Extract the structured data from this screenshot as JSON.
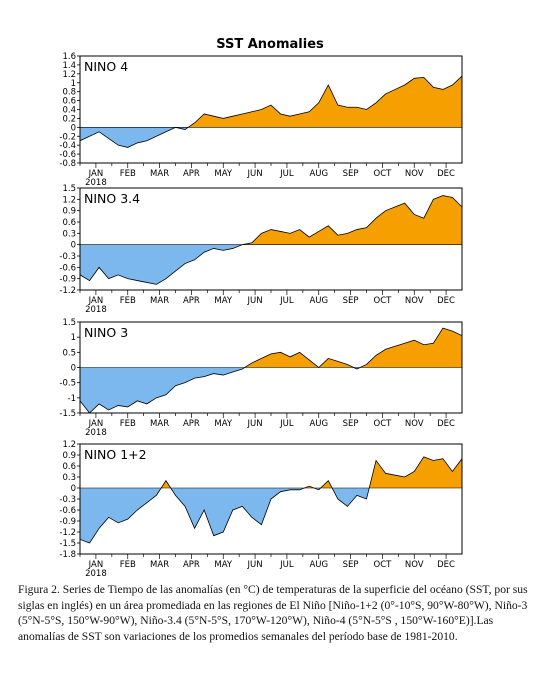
{
  "figure": {
    "title": "SST Anomalies",
    "colors": {
      "positive": "#f5a000",
      "negative": "#7cb8ee",
      "line": "#000000"
    },
    "month_labels": [
      "JAN",
      "FEB",
      "MAR",
      "APR",
      "MAY",
      "JUN",
      "JUL",
      "AUG",
      "SEP",
      "OCT",
      "NOV",
      "DEC"
    ],
    "year_label": "2018"
  },
  "caption": "Figura 2. Series de Tiempo de las anomalías (en °C) de temperaturas de la superficie del océano (SST, por sus siglas en inglés) en un área promediada en las regiones de El Niño [Niño-1+2 (0°-10°S, 90°W-80°W), Niño-3 (5°N-5°S, 150°W-90°W), Niño-3.4 (5°N-5°S, 170°W-120°W), Niño-4 (5°N-5°S , 150°W-160°E)].Las anomalías de SST son variaciones de los promedios semanales del período base de 1981-2010.",
  "chart_data": [
    {
      "type": "area",
      "region": "NINO 4",
      "ylim": [
        -0.8,
        1.6
      ],
      "yticks": [
        "1.6",
        "1.4",
        "1.2",
        "1",
        "0.8",
        "0.6",
        "0.4",
        "0.2",
        "0",
        "-0.2",
        "-0.4",
        "-0.6",
        "-0.8"
      ],
      "x": [
        0,
        0.3,
        0.6,
        0.9,
        1.2,
        1.5,
        1.8,
        2.1,
        2.4,
        2.7,
        3.0,
        3.3,
        3.6,
        3.9,
        4.2,
        4.5,
        4.8,
        5.1,
        5.4,
        5.7,
        6.0,
        6.3,
        6.6,
        6.9,
        7.2,
        7.5,
        7.8,
        8.1,
        8.4,
        8.7,
        9.0,
        9.3,
        9.6,
        9.9,
        10.2,
        10.5,
        10.8,
        11.1,
        11.4,
        11.7,
        12.0
      ],
      "y": [
        -0.3,
        -0.2,
        -0.1,
        -0.25,
        -0.4,
        -0.45,
        -0.35,
        -0.3,
        -0.2,
        -0.1,
        0.0,
        -0.05,
        0.1,
        0.3,
        0.25,
        0.2,
        0.25,
        0.3,
        0.35,
        0.4,
        0.5,
        0.3,
        0.25,
        0.3,
        0.35,
        0.55,
        0.95,
        0.5,
        0.45,
        0.45,
        0.4,
        0.55,
        0.75,
        0.85,
        0.95,
        1.1,
        1.12,
        0.9,
        0.85,
        0.95,
        1.15
      ]
    },
    {
      "type": "area",
      "region": "NINO 3.4",
      "ylim": [
        -1.2,
        1.5
      ],
      "yticks": [
        "1.5",
        "1.2",
        "0.9",
        "0.6",
        "0.3",
        "0",
        "-0.3",
        "-0.6",
        "-0.9",
        "-1.2"
      ],
      "x": [
        0,
        0.3,
        0.6,
        0.9,
        1.2,
        1.5,
        1.8,
        2.1,
        2.4,
        2.7,
        3.0,
        3.3,
        3.6,
        3.9,
        4.2,
        4.5,
        4.8,
        5.1,
        5.4,
        5.7,
        6.0,
        6.3,
        6.6,
        6.9,
        7.2,
        7.5,
        7.8,
        8.1,
        8.4,
        8.7,
        9.0,
        9.3,
        9.6,
        9.9,
        10.2,
        10.5,
        10.8,
        11.1,
        11.4,
        11.7,
        12.0
      ],
      "y": [
        -0.8,
        -0.95,
        -0.6,
        -0.9,
        -0.8,
        -0.9,
        -0.95,
        -1.0,
        -1.05,
        -0.9,
        -0.7,
        -0.5,
        -0.4,
        -0.2,
        -0.1,
        -0.15,
        -0.1,
        0.0,
        0.05,
        0.3,
        0.4,
        0.35,
        0.3,
        0.4,
        0.2,
        0.35,
        0.5,
        0.25,
        0.3,
        0.4,
        0.45,
        0.7,
        0.9,
        1.0,
        1.1,
        0.8,
        0.7,
        1.2,
        1.3,
        1.25,
        1.0
      ]
    },
    {
      "type": "area",
      "region": "NINO 3",
      "ylim": [
        -1.5,
        1.5
      ],
      "yticks": [
        "1.5",
        "1",
        "0.5",
        "0",
        "-0.5",
        "-1",
        "-1.5"
      ],
      "x": [
        0,
        0.3,
        0.6,
        0.9,
        1.2,
        1.5,
        1.8,
        2.1,
        2.4,
        2.7,
        3.0,
        3.3,
        3.6,
        3.9,
        4.2,
        4.5,
        4.8,
        5.1,
        5.4,
        5.7,
        6.0,
        6.3,
        6.6,
        6.9,
        7.2,
        7.5,
        7.8,
        8.1,
        8.4,
        8.7,
        9.0,
        9.3,
        9.6,
        9.9,
        10.2,
        10.5,
        10.8,
        11.1,
        11.4,
        11.7,
        12.0
      ],
      "y": [
        -1.1,
        -1.5,
        -1.2,
        -1.4,
        -1.25,
        -1.3,
        -1.1,
        -1.2,
        -1.0,
        -0.9,
        -0.6,
        -0.5,
        -0.35,
        -0.3,
        -0.2,
        -0.25,
        -0.15,
        -0.05,
        0.15,
        0.3,
        0.45,
        0.5,
        0.35,
        0.5,
        0.25,
        0.0,
        0.3,
        0.2,
        0.1,
        -0.05,
        0.1,
        0.4,
        0.6,
        0.7,
        0.8,
        0.9,
        0.75,
        0.8,
        1.3,
        1.2,
        1.05
      ]
    },
    {
      "type": "area",
      "region": "NINO 1+2",
      "ylim": [
        -1.8,
        1.2
      ],
      "yticks": [
        "1.2",
        "0.9",
        "0.6",
        "0.3",
        "0",
        "-0.3",
        "-0.6",
        "-0.9",
        "-1.2",
        "-1.5",
        "-1.8"
      ],
      "x": [
        0,
        0.3,
        0.6,
        0.9,
        1.2,
        1.5,
        1.8,
        2.1,
        2.4,
        2.7,
        3.0,
        3.3,
        3.6,
        3.9,
        4.2,
        4.5,
        4.8,
        5.1,
        5.4,
        5.7,
        6.0,
        6.3,
        6.6,
        6.9,
        7.2,
        7.5,
        7.8,
        8.1,
        8.4,
        8.7,
        9.0,
        9.3,
        9.6,
        9.9,
        10.2,
        10.5,
        10.8,
        11.1,
        11.4,
        11.7,
        12.0
      ],
      "y": [
        -1.4,
        -1.5,
        -1.1,
        -0.8,
        -0.95,
        -0.85,
        -0.6,
        -0.4,
        -0.2,
        0.2,
        -0.2,
        -0.5,
        -1.1,
        -0.6,
        -1.3,
        -1.2,
        -0.6,
        -0.5,
        -0.8,
        -1.0,
        -0.3,
        -0.1,
        -0.05,
        -0.05,
        0.05,
        -0.05,
        0.2,
        -0.3,
        -0.5,
        -0.2,
        -0.3,
        0.75,
        0.4,
        0.35,
        0.3,
        0.45,
        0.85,
        0.75,
        0.8,
        0.45,
        0.8
      ]
    }
  ]
}
